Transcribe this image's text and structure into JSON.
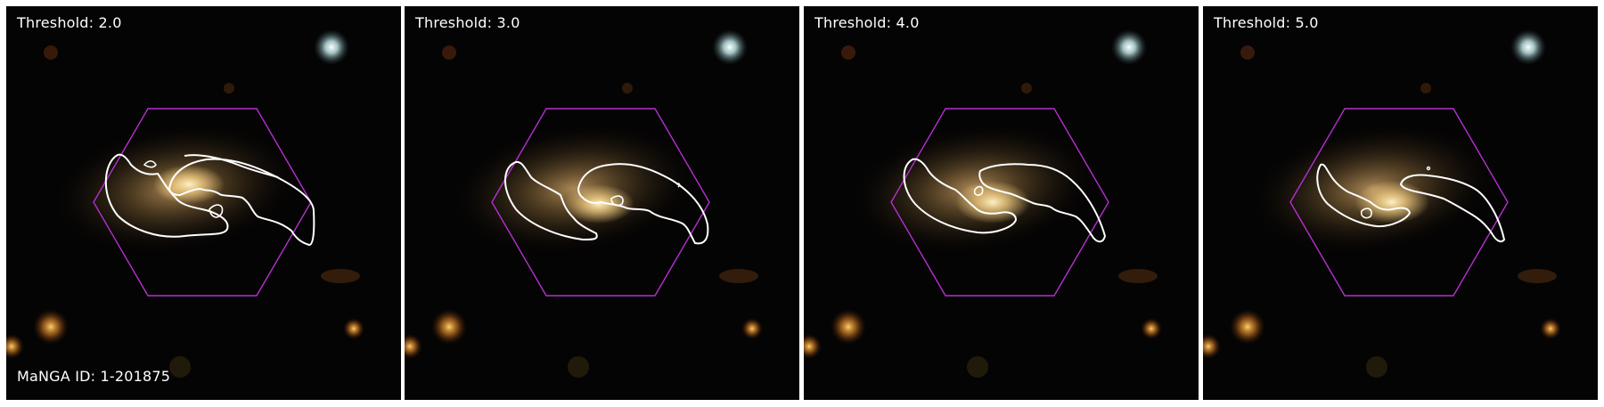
{
  "figure": {
    "panels": [
      {
        "threshold_label": "Threshold: 2.0",
        "threshold": 2.0
      },
      {
        "threshold_label": "Threshold: 3.0",
        "threshold": 3.0
      },
      {
        "threshold_label": "Threshold: 4.0",
        "threshold": 4.0
      },
      {
        "threshold_label": "Threshold: 5.0",
        "threshold": 5.0
      }
    ],
    "manga_id_label": "MaNGA ID: 1-201875",
    "colors": {
      "hexagon": "#b52fd0",
      "contour": "#ffffff",
      "galaxy_core": "#ffd98a",
      "galaxy_halo": "#8a6a3a",
      "background": "#050404"
    }
  }
}
